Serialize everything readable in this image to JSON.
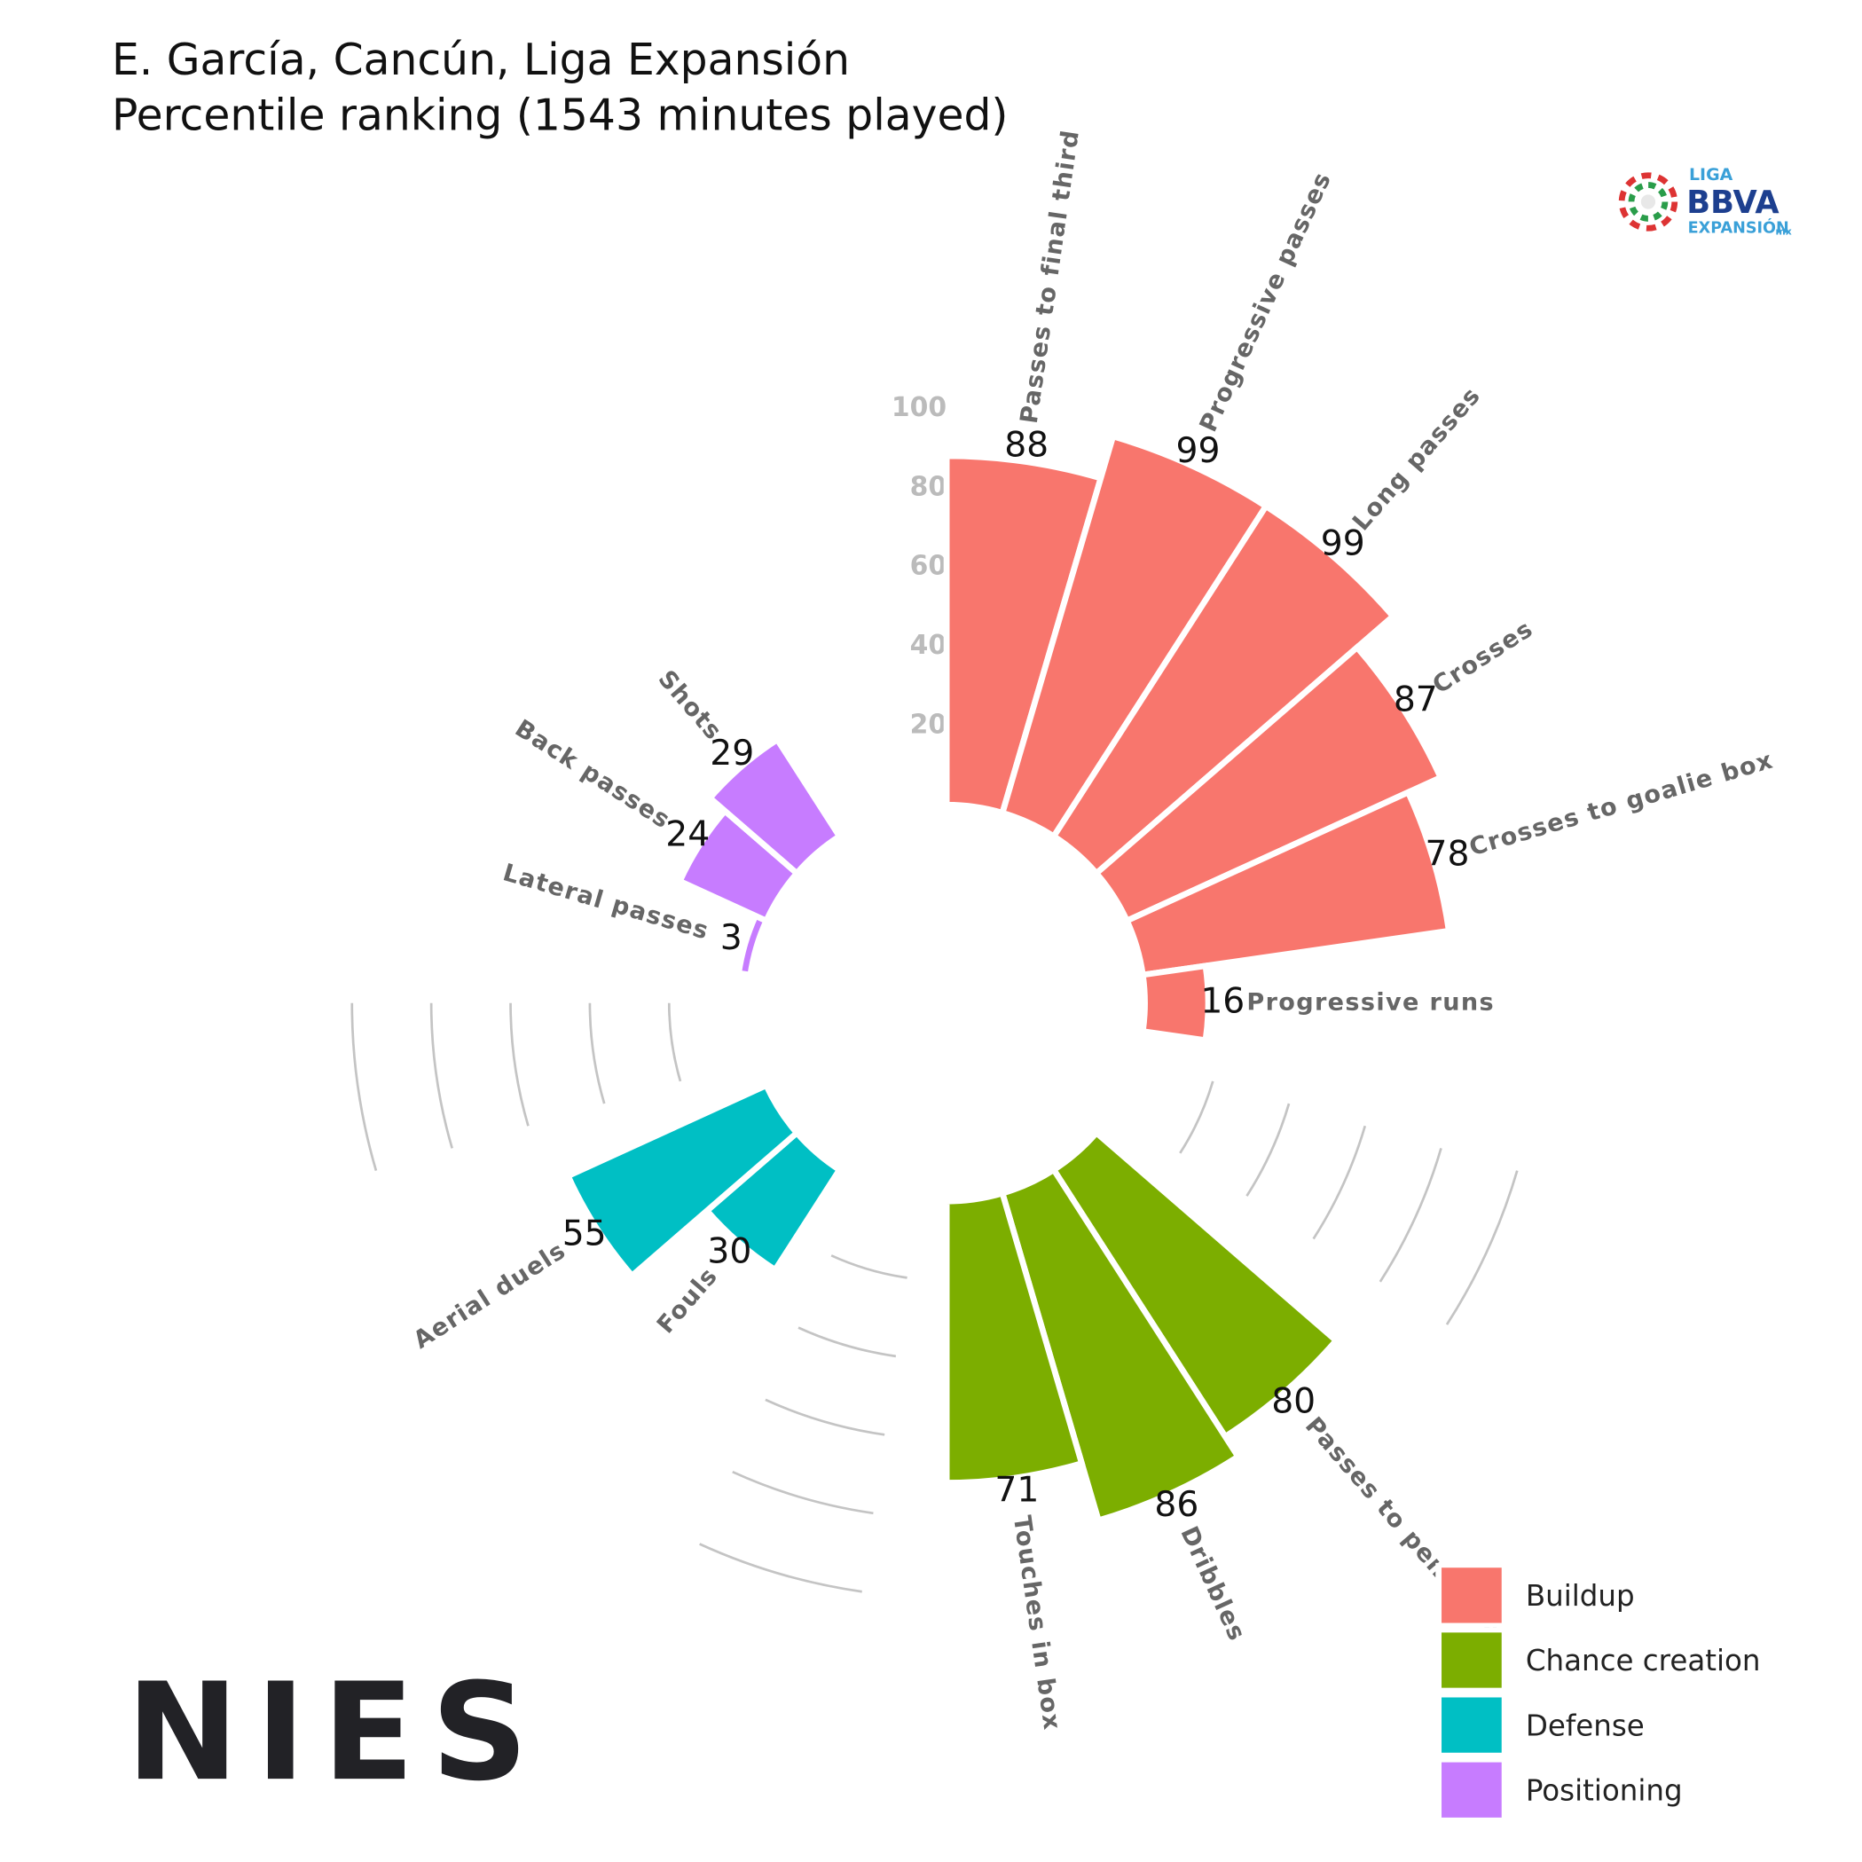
{
  "chart_data": {
    "type": "bar",
    "polar": true,
    "title": [
      "E. García, Cancún, Liga Expansión",
      "Percentile ranking (1543 minutes played)"
    ],
    "categories": [
      "Passes to final third",
      "Progressive passes",
      "Long passes",
      "Crosses",
      "Crosses to goalie box",
      "Progressive runs",
      "Passes to penalty area",
      "Dribbles",
      "Touches in box",
      "Fouls",
      "Aerial duels",
      "Lateral passes",
      "Back passes",
      "Shots"
    ],
    "series": [
      {
        "name": "Buildup",
        "color": "#F8766D",
        "values": [
          88,
          99,
          99,
          87,
          78,
          16,
          null,
          null,
          null,
          null,
          null,
          null,
          null,
          null
        ]
      },
      {
        "name": "Chance creation",
        "color": "#7CAE00",
        "values": [
          null,
          null,
          null,
          null,
          null,
          null,
          80,
          86,
          71,
          null,
          null,
          null,
          null,
          null
        ]
      },
      {
        "name": "Defense",
        "color": "#00BFC4",
        "values": [
          null,
          null,
          null,
          null,
          null,
          null,
          null,
          null,
          null,
          30,
          55,
          null,
          null,
          null
        ]
      },
      {
        "name": "Positioning",
        "color": "#C77CFF",
        "values": [
          null,
          null,
          null,
          null,
          null,
          null,
          null,
          null,
          null,
          null,
          null,
          3,
          24,
          29
        ]
      }
    ],
    "rlim": [
      0,
      100
    ],
    "rticks": [
      20,
      40,
      60,
      80,
      100
    ],
    "legend": "bottom-right",
    "logo": "NIES",
    "league_logo": [
      "LIGA",
      "BBVA",
      "EXPANSIÓN",
      "mx"
    ]
  }
}
